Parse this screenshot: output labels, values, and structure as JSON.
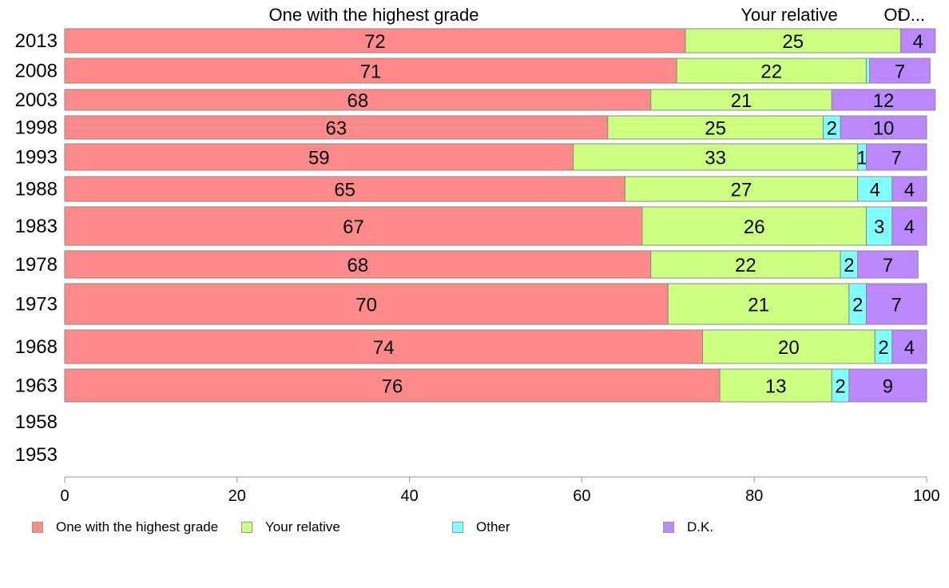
{
  "chart_data": {
    "type": "bar",
    "orientation": "horizontal",
    "stacked": true,
    "categories": [
      "2013",
      "2008",
      "2003",
      "1998",
      "1993",
      "1988",
      "1983",
      "1978",
      "1973",
      "1968",
      "1963",
      "1958",
      "1953"
    ],
    "series": [
      {
        "name": "One with the highest grade",
        "color": "#ff8a8a",
        "values": [
          72,
          71,
          68,
          63,
          59,
          65,
          67,
          68,
          70,
          74,
          76,
          null,
          null
        ]
      },
      {
        "name": "Your relative",
        "color": "#ccff80",
        "values": [
          25,
          22,
          21,
          25,
          33,
          27,
          26,
          22,
          21,
          20,
          13,
          null,
          null
        ]
      },
      {
        "name": "Other",
        "color": "#80ffff",
        "values": [
          0,
          0.4,
          0,
          2,
          1,
          4,
          3,
          2,
          2,
          2,
          2,
          null,
          null
        ]
      },
      {
        "name": "D.K.",
        "color": "#bb88ff",
        "values": [
          4,
          7,
          12,
          10,
          7,
          4,
          4,
          7,
          7,
          4,
          9,
          null,
          null
        ]
      }
    ],
    "header_labels": [
      "One with the highest grade",
      "Your relative",
      "Other",
      "D.K."
    ],
    "header_display": [
      "One with the highest grade",
      "Your relative",
      "Ot",
      "D..."
    ],
    "xlim": [
      0,
      100
    ],
    "xticks": [
      0,
      20,
      40,
      60,
      80,
      100
    ],
    "grid": false,
    "legend_position": "bottom"
  }
}
